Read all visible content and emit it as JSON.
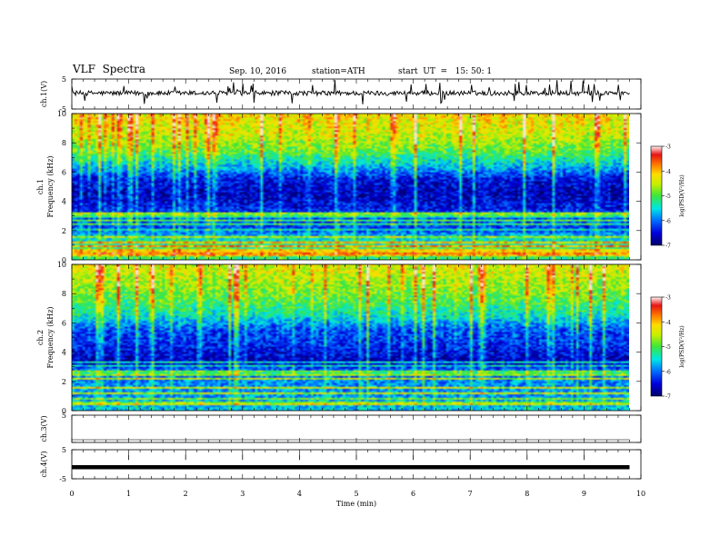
{
  "header": {
    "title": "VLF  Spectra",
    "date": "Sep. 10, 2016",
    "station": "station=ATH",
    "start": "start  UT  =   15: 50: 1"
  },
  "chart_data": [
    {
      "type": "line",
      "panel": "ch1-waveform",
      "ylabel": "ch.1(V)",
      "ylim": [
        -5,
        5
      ],
      "yticks": [
        "5",
        "-5"
      ],
      "xlim": [
        0,
        10
      ],
      "data_end_min": 9.8,
      "baseline_v": 0.3
    },
    {
      "type": "heatmap",
      "panel": "ch1-spectrogram",
      "ylabel": "ch.1\nFrequency  (kHz)",
      "ylabel_channel": "ch.1",
      "ylabel_freq": "Frequency  (kHz)",
      "ylim": [
        0,
        10
      ],
      "yticks": [
        "0",
        "2",
        "4",
        "6",
        "8",
        "10"
      ],
      "xlim": [
        0,
        10
      ],
      "data_end_min": 9.8,
      "colorbar": {
        "label": "log(PSD(V²/Hz)",
        "range": [
          -7,
          -3
        ],
        "ticks": [
          "-3",
          "-4",
          "-5",
          "-6",
          "-7"
        ]
      },
      "profile": [
        {
          "f": 0.0,
          "v": -5.2
        },
        {
          "f": 0.5,
          "v": -5.0
        },
        {
          "f": 1.0,
          "v": -5.4
        },
        {
          "f": 1.5,
          "v": -5.6
        },
        {
          "f": 2.0,
          "v": -6.3
        },
        {
          "f": 3.0,
          "v": -6.2
        },
        {
          "f": 3.5,
          "v": -6.5
        },
        {
          "f": 4.5,
          "v": -6.8
        },
        {
          "f": 5.5,
          "v": -6.6
        },
        {
          "f": 6.5,
          "v": -5.8
        },
        {
          "f": 7.5,
          "v": -5.1
        },
        {
          "f": 8.5,
          "v": -4.7
        },
        {
          "f": 10.0,
          "v": -4.4
        }
      ]
    },
    {
      "type": "heatmap",
      "panel": "ch2-spectrogram",
      "ylabel": "ch.2\nFrequency  (kHz)",
      "ylabel_channel": "ch.2",
      "ylabel_freq": "Frequency  (kHz)",
      "ylim": [
        0,
        10
      ],
      "yticks": [
        "0",
        "2",
        "4",
        "6",
        "8",
        "10"
      ],
      "xlim": [
        0,
        10
      ],
      "data_end_min": 9.8,
      "colorbar": {
        "label": "log(PSD(V²/Hz)",
        "range": [
          -7,
          -3
        ],
        "ticks": [
          "-3",
          "-4",
          "-5",
          "-6",
          "-7"
        ]
      },
      "profile": [
        {
          "f": 0.0,
          "v": -5.7
        },
        {
          "f": 1.0,
          "v": -5.9
        },
        {
          "f": 2.0,
          "v": -6.0
        },
        {
          "f": 2.8,
          "v": -6.2
        },
        {
          "f": 3.3,
          "v": -6.8
        },
        {
          "f": 4.0,
          "v": -6.6
        },
        {
          "f": 4.7,
          "v": -6.4
        },
        {
          "f": 5.5,
          "v": -6.3
        },
        {
          "f": 6.5,
          "v": -5.6
        },
        {
          "f": 7.5,
          "v": -5.2
        },
        {
          "f": 8.5,
          "v": -4.9
        },
        {
          "f": 10.0,
          "v": -4.6
        }
      ]
    },
    {
      "type": "line",
      "panel": "ch3-waveform",
      "ylabel": "ch.3(V)",
      "ylim": [
        -5,
        5
      ],
      "yticks": [
        "5",
        ""
      ],
      "xlim": [
        0,
        10
      ],
      "data_end_min": 9.8,
      "baseline_v": -4.0
    },
    {
      "type": "line",
      "panel": "ch4-waveform",
      "ylabel": "ch.4(V)",
      "ylim": [
        -5,
        5
      ],
      "yticks": [
        "5",
        "-5"
      ],
      "xlim": [
        0,
        10
      ],
      "data_end_min": 9.8,
      "baseline_v": -1.0
    }
  ],
  "xaxis": {
    "label": "Time  (min)",
    "ticks": [
      "0",
      "1",
      "2",
      "3",
      "4",
      "5",
      "6",
      "7",
      "8",
      "9",
      "10"
    ]
  }
}
